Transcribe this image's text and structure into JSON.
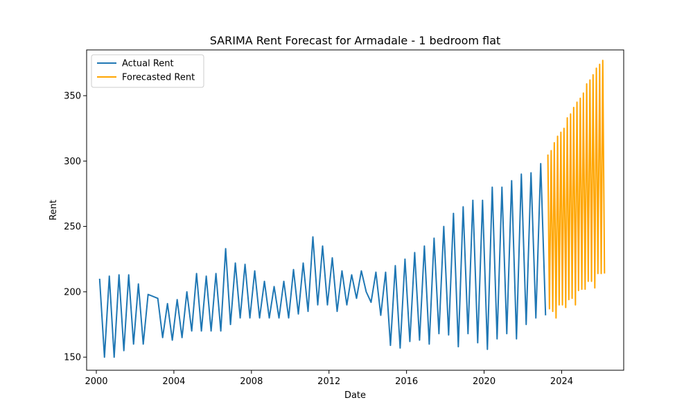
{
  "chart_data": {
    "type": "line",
    "title": "SARIMA Rent Forecast for Armadale - 1 bedroom flat",
    "xlabel": "Date",
    "ylabel": "Rent",
    "xlim": [
      1999.5,
      2027.2
    ],
    "ylim": [
      140,
      385
    ],
    "xticks": [
      2000,
      2004,
      2008,
      2012,
      2016,
      2020,
      2024
    ],
    "yticks": [
      150,
      200,
      250,
      300,
      350
    ],
    "grid": false,
    "legend_position": "top-left",
    "series": [
      {
        "name": "Actual Rent",
        "color": "#1f77b4",
        "x": [
          2000.17,
          2000.42,
          2000.67,
          2000.92,
          2001.17,
          2001.42,
          2001.67,
          2001.92,
          2002.17,
          2002.42,
          2002.67,
          2003.17,
          2003.42,
          2003.67,
          2003.92,
          2004.17,
          2004.42,
          2004.67,
          2004.92,
          2005.17,
          2005.42,
          2005.67,
          2005.92,
          2006.17,
          2006.42,
          2006.67,
          2006.92,
          2007.17,
          2007.42,
          2007.67,
          2007.92,
          2008.17,
          2008.42,
          2008.67,
          2008.92,
          2009.17,
          2009.42,
          2009.67,
          2009.92,
          2010.17,
          2010.42,
          2010.67,
          2010.92,
          2011.17,
          2011.42,
          2011.67,
          2011.92,
          2012.17,
          2012.42,
          2012.67,
          2012.92,
          2013.17,
          2013.42,
          2013.67,
          2013.92,
          2014.17,
          2014.42,
          2014.67,
          2014.92,
          2015.17,
          2015.42,
          2015.67,
          2015.92,
          2016.17,
          2016.42,
          2016.67,
          2016.92,
          2017.17,
          2017.42,
          2017.67,
          2017.92,
          2018.17,
          2018.42,
          2018.67,
          2018.92,
          2019.17,
          2019.42,
          2019.67,
          2019.92,
          2020.17,
          2020.42,
          2020.67,
          2020.92,
          2021.17,
          2021.42,
          2021.67,
          2021.92,
          2022.17,
          2022.42,
          2022.67,
          2022.92,
          2023.17
        ],
        "y": [
          210,
          150,
          212,
          150,
          213,
          155,
          213,
          160,
          206,
          160,
          198,
          195,
          165,
          191,
          163,
          194,
          165,
          200,
          170,
          214,
          170,
          212,
          170,
          214,
          170,
          233,
          175,
          222,
          180,
          221,
          180,
          216,
          180,
          208,
          180,
          204,
          180,
          208,
          180,
          217,
          183,
          222,
          185,
          242,
          190,
          235,
          190,
          226,
          185,
          216,
          190,
          213,
          195,
          216,
          200,
          192,
          215,
          182,
          215,
          159,
          220,
          157,
          225,
          162,
          230,
          163,
          235,
          160,
          241,
          168,
          250,
          167,
          260,
          158,
          265,
          168,
          270,
          161,
          270,
          156,
          280,
          164,
          280,
          168,
          285,
          164,
          290,
          175,
          291,
          180,
          298,
          182
        ]
      },
      {
        "name": "Forecasted Rent",
        "color": "#ffa500",
        "x": [
          2023.29,
          2023.37,
          2023.46,
          2023.54,
          2023.62,
          2023.71,
          2023.79,
          2023.87,
          2023.96,
          2024.04,
          2024.12,
          2024.21,
          2024.29,
          2024.37,
          2024.46,
          2024.54,
          2024.62,
          2024.71,
          2024.79,
          2024.87,
          2024.96,
          2025.04,
          2025.12,
          2025.21,
          2025.29,
          2025.37,
          2025.46,
          2025.54,
          2025.62,
          2025.71,
          2025.79,
          2025.87,
          2025.96,
          2026.04,
          2026.12,
          2026.21
        ],
        "y": [
          305,
          187,
          308,
          185,
          314,
          180,
          319,
          190,
          322,
          190,
          325,
          188,
          333,
          194,
          336,
          195,
          341,
          190,
          345,
          201,
          348,
          202,
          352,
          202,
          359,
          208,
          362,
          208,
          366,
          203,
          371,
          214,
          374,
          214,
          377,
          214
        ]
      }
    ]
  }
}
